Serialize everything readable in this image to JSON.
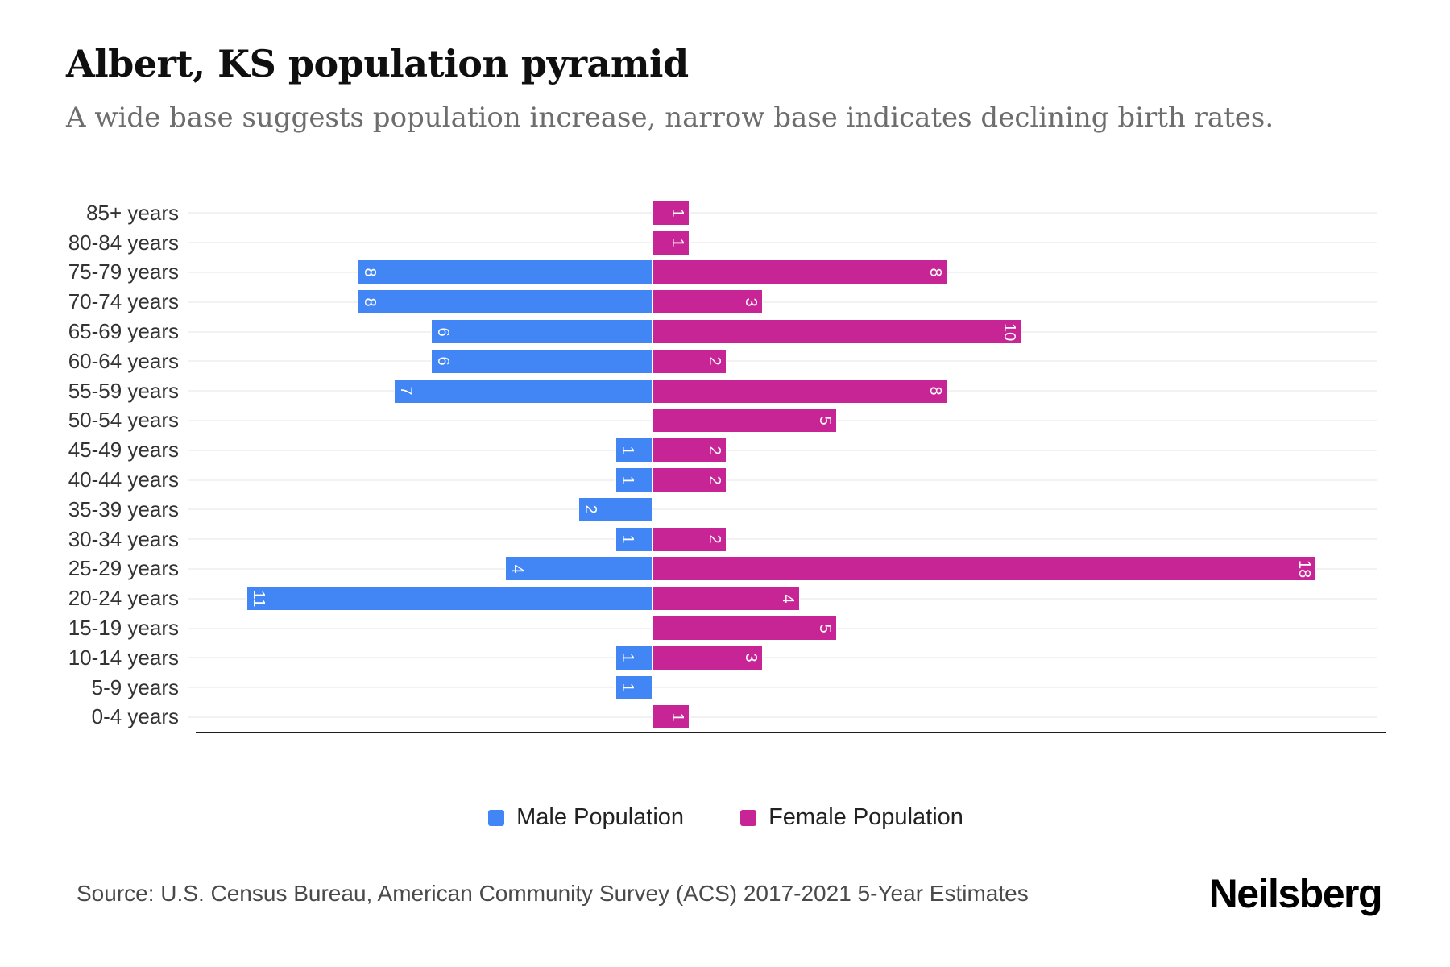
{
  "chart_data": {
    "type": "bar",
    "variant": "population-pyramid",
    "title": "Albert, KS population pyramid",
    "subtitle": "A wide base suggests population increase, narrow base indicates declining birth rates.",
    "categories": [
      "85+ years",
      "80-84 years",
      "75-79 years",
      "70-74 years",
      "65-69 years",
      "60-64 years",
      "55-59 years",
      "50-54 years",
      "45-49 years",
      "40-44 years",
      "35-39 years",
      "30-34 years",
      "25-29 years",
      "20-24 years",
      "15-19 years",
      "10-14 years",
      "5-9 years",
      "0-4 years"
    ],
    "series": [
      {
        "name": "Male Population",
        "side": "left",
        "color": "#4285F4",
        "values": [
          0,
          0,
          8,
          8,
          6,
          6,
          7,
          0,
          1,
          1,
          2,
          1,
          4,
          11,
          0,
          1,
          1,
          0
        ]
      },
      {
        "name": "Female Population",
        "side": "right",
        "color": "#C72595",
        "values": [
          1,
          1,
          8,
          3,
          10,
          2,
          8,
          5,
          2,
          2,
          0,
          2,
          18,
          4,
          5,
          3,
          0,
          1
        ]
      }
    ],
    "value_labels": "inside-bar-end, white, rotated 90deg, hidden when 0",
    "legend_position": "bottom-center",
    "grid": "light horizontal line per row",
    "axis": {
      "male_max_units": 12.6,
      "female_max_units": 19.6,
      "baseline_color": "#1c1c1c"
    }
  },
  "colors": {
    "male": "#4285F4",
    "female": "#C72595",
    "gridline": "#f2f2f2",
    "axis_label": "#333333",
    "subtitle": "#6d6d6d"
  },
  "footer": {
    "source": "Source: U.S. Census Bureau, American Community Survey (ACS) 2017-2021 5-Year Estimates",
    "brand": "Neilsberg"
  }
}
